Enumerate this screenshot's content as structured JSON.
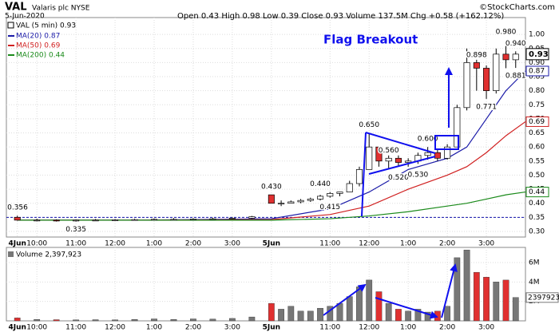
{
  "chart_data": {
    "type": "candlestick",
    "symbol": "VAL",
    "company": "Valaris plc NYSE",
    "date": "5-Jun-2020",
    "quote": "Open 0.43 High 0.98 Low 0.39 Close 0.93 Volume 137.5M Chg +0.58 (+162.12%)",
    "credit": "©StockCharts.com",
    "price_legend": "VAL (5 min) 0.93",
    "last_price": 0.93,
    "annotation_title": "Flag Breakout",
    "xlim": [
      -0.28,
      13
    ],
    "xticks": [
      {
        "value": 0,
        "label": "4Jun"
      },
      {
        "value": 0.5,
        "label": "10:00"
      },
      {
        "value": 1.5,
        "label": "11:00"
      },
      {
        "value": 2.5,
        "label": "12:00"
      },
      {
        "value": 3.5,
        "label": "1:00"
      },
      {
        "value": 4.5,
        "label": "2:00"
      },
      {
        "value": 5.5,
        "label": "3:00"
      },
      {
        "value": 6.5,
        "label": "5Jun"
      },
      {
        "value": 8,
        "label": "11:00"
      },
      {
        "value": 9,
        "label": "12:00"
      },
      {
        "value": 10,
        "label": "1:00"
      },
      {
        "value": 11,
        "label": "2:00"
      },
      {
        "value": 12,
        "label": "3:00"
      }
    ],
    "ylim": [
      0.28,
      1.06
    ],
    "yticks": [
      {
        "value": 0.3,
        "label": "0.30"
      },
      {
        "value": 0.35,
        "label": "0.35"
      },
      {
        "value": 0.4,
        "label": "0.40"
      },
      {
        "value": 0.45,
        "label": "0.45"
      },
      {
        "value": 0.5,
        "label": "0.50"
      },
      {
        "value": 0.55,
        "label": "0.55"
      },
      {
        "value": 0.6,
        "label": "0.60"
      },
      {
        "value": 0.65,
        "label": "0.65"
      },
      {
        "value": 0.7,
        "label": "0.70"
      },
      {
        "value": 0.75,
        "label": "0.75"
      },
      {
        "value": 0.8,
        "label": "0.80"
      },
      {
        "value": 0.85,
        "label": "0.85"
      },
      {
        "value": 0.9,
        "label": "0.90"
      },
      {
        "value": 0.95,
        "label": "0.95"
      },
      {
        "value": 1,
        "label": "1.00"
      }
    ],
    "prev_close": 0.35,
    "grid": true,
    "up_color": "#ffffff",
    "down_color": "#e03030",
    "candles": {
      "x": [
        0,
        0.5,
        1,
        1.5,
        2,
        2.5,
        3,
        3.5,
        4,
        4.5,
        5,
        5.5,
        6,
        6.5,
        6.75,
        7,
        7.25,
        7.5,
        7.75,
        8,
        8.25,
        8.5,
        8.75,
        9,
        9.25,
        9.5,
        9.75,
        10,
        10.25,
        10.5,
        10.75,
        11,
        11.25,
        11.5,
        11.75,
        12,
        12.25,
        12.5,
        12.75
      ],
      "open": [
        0.35,
        0.34,
        0.34,
        0.337,
        0.34,
        0.34,
        0.341,
        0.342,
        0.343,
        0.343,
        0.344,
        0.345,
        0.347,
        0.43,
        0.4,
        0.4,
        0.405,
        0.41,
        0.415,
        0.425,
        0.435,
        0.44,
        0.47,
        0.52,
        0.6,
        0.55,
        0.56,
        0.545,
        0.55,
        0.57,
        0.58,
        0.56,
        0.6,
        0.74,
        0.9,
        0.88,
        0.8,
        0.93,
        0.91
      ],
      "high": [
        0.356,
        0.345,
        0.343,
        0.342,
        0.344,
        0.344,
        0.345,
        0.346,
        0.347,
        0.347,
        0.348,
        0.35,
        0.355,
        0.43,
        0.41,
        0.41,
        0.415,
        0.42,
        0.43,
        0.44,
        0.44,
        0.48,
        0.53,
        0.65,
        0.6,
        0.57,
        0.57,
        0.56,
        0.58,
        0.6,
        0.59,
        0.61,
        0.75,
        0.95,
        0.91,
        0.89,
        0.95,
        0.98,
        0.94
      ],
      "low": [
        0.338,
        0.336,
        0.335,
        0.335,
        0.337,
        0.338,
        0.339,
        0.34,
        0.34,
        0.341,
        0.342,
        0.343,
        0.344,
        0.4,
        0.39,
        0.4,
        0.4,
        0.405,
        0.41,
        0.42,
        0.425,
        0.44,
        0.46,
        0.52,
        0.53,
        0.52,
        0.53,
        0.53,
        0.54,
        0.555,
        0.55,
        0.555,
        0.6,
        0.73,
        0.8,
        0.771,
        0.79,
        0.88,
        0.881
      ],
      "close": [
        0.34,
        0.34,
        0.337,
        0.34,
        0.34,
        0.341,
        0.342,
        0.343,
        0.343,
        0.344,
        0.345,
        0.347,
        0.352,
        0.4,
        0.4,
        0.405,
        0.41,
        0.415,
        0.425,
        0.435,
        0.44,
        0.47,
        0.52,
        0.6,
        0.55,
        0.56,
        0.545,
        0.55,
        0.57,
        0.58,
        0.56,
        0.6,
        0.74,
        0.9,
        0.88,
        0.8,
        0.93,
        0.91,
        0.93
      ]
    },
    "series": [
      {
        "name": "MA(20) 0.87",
        "color": "#1a1aa8",
        "last": 0.87,
        "x": [
          0,
          3,
          6.5,
          8,
          9,
          10,
          11,
          11.5,
          12,
          12.5,
          13
        ],
        "values": [
          0.34,
          0.34,
          0.345,
          0.38,
          0.44,
          0.52,
          0.56,
          0.6,
          0.7,
          0.8,
          0.87
        ]
      },
      {
        "name": "MA(50) 0.69",
        "color": "#d02020",
        "last": 0.69,
        "x": [
          0,
          3,
          6.5,
          8,
          9,
          10,
          11,
          11.5,
          12,
          12.5,
          13
        ],
        "values": [
          0.34,
          0.34,
          0.342,
          0.36,
          0.39,
          0.45,
          0.5,
          0.53,
          0.58,
          0.64,
          0.69
        ]
      },
      {
        "name": "MA(200) 0.44",
        "color": "#1a8a1a",
        "last": 0.44,
        "x": [
          0,
          3,
          6.5,
          8,
          9,
          10,
          11,
          11.5,
          12,
          12.5,
          13
        ],
        "values": [
          0.34,
          0.34,
          0.34,
          0.345,
          0.355,
          0.37,
          0.39,
          0.4,
          0.415,
          0.43,
          0.44
        ]
      }
    ],
    "annotations": [
      {
        "x": -0.2,
        "y": 0.356,
        "text": "0.356"
      },
      {
        "x": 1.5,
        "y": 0.335,
        "text": "0.335"
      },
      {
        "x": 6.5,
        "y": 0.43,
        "text": "0.430"
      },
      {
        "x": 7.75,
        "y": 0.44,
        "text": "0.440"
      },
      {
        "x": 8,
        "y": 0.415,
        "text": "0.415"
      },
      {
        "x": 9,
        "y": 0.65,
        "text": "0.650"
      },
      {
        "x": 9.5,
        "y": 0.56,
        "text": "0.560"
      },
      {
        "x": 9.75,
        "y": 0.52,
        "text": "0.520"
      },
      {
        "x": 10.5,
        "y": 0.6,
        "text": "0.600"
      },
      {
        "x": 10.25,
        "y": 0.53,
        "text": "0.530"
      },
      {
        "x": 11.75,
        "y": 0.898,
        "text": "0.898"
      },
      {
        "x": 12.5,
        "y": 0.98,
        "text": "0.980"
      },
      {
        "x": 12.75,
        "y": 0.94,
        "text": "0.940"
      },
      {
        "x": 12.75,
        "y": 0.881,
        "text": "0.881"
      },
      {
        "x": 12,
        "y": 0.771,
        "text": "0.771"
      }
    ],
    "volume": {
      "label": "Volume 2,397,923",
      "last": {
        "value": 2397923,
        "label": "2397923"
      },
      "ylim": [
        0,
        7560000
      ],
      "yticks": [
        {
          "value": 2000000,
          "label": "2M"
        },
        {
          "value": 4000000,
          "label": "4M"
        },
        {
          "value": 6000000,
          "label": "6M"
        }
      ],
      "values": [
        300000,
        150000,
        120000,
        100000,
        120000,
        100000,
        150000,
        200000,
        150000,
        200000,
        180000,
        250000,
        400000,
        1800000,
        1200000,
        1500000,
        1000000,
        1000000,
        1300000,
        1500000,
        1800000,
        2500000,
        3500000,
        4200000,
        3000000,
        1800000,
        1200000,
        1000000,
        1200000,
        900000,
        1000000,
        1500000,
        6500000,
        7300000,
        5000000,
        4500000,
        4000000,
        4200000,
        2400000
      ]
    }
  }
}
